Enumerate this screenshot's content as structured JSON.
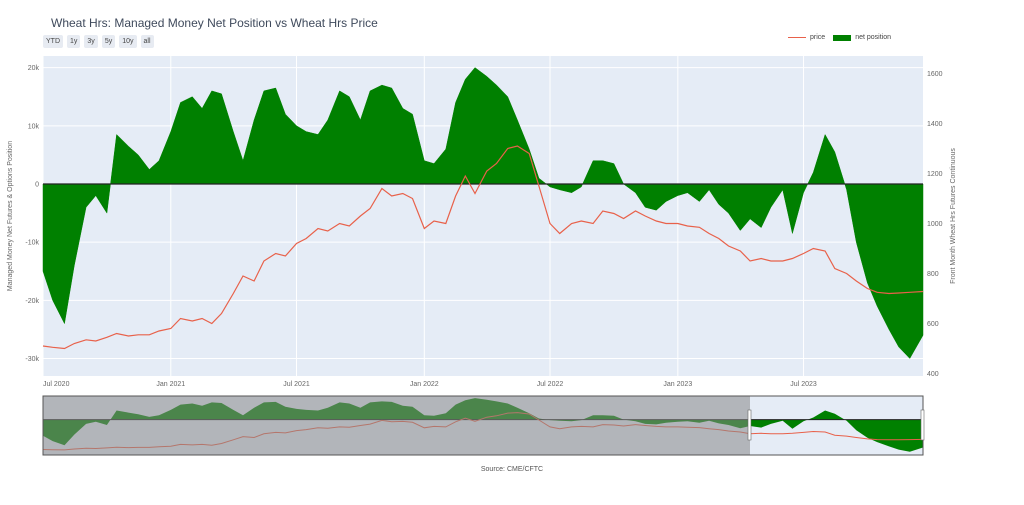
{
  "title": "Wheat Hrs: Managed Money Net Position vs Wheat Hrs Price",
  "range_buttons": [
    "YTD",
    "1y",
    "3y",
    "5y",
    "10y",
    "all"
  ],
  "legend": {
    "price": "price",
    "net_position": "net position"
  },
  "source": "Source: CME/CFTC",
  "colors": {
    "price": "#e8614a",
    "net_position": "#008000",
    "plot_bg": "#e5ecf6",
    "range_mask": "#888888"
  },
  "chart_data": {
    "type": "area",
    "title": "Wheat Hrs: Managed Money Net Position vs Wheat Hrs Price",
    "ylabel": "Managed Money Net Futures & Options Position",
    "y2label": "Front Month Wheat Hrs Futures Continuous",
    "xlim": [
      "2020-07-01",
      "2023-12-20"
    ],
    "ylim": [
      -33000,
      22000
    ],
    "y2lim": [
      390,
      1670
    ],
    "x_ticks": [
      "Jul 2020",
      "Jan 2021",
      "Jul 2021",
      "Jan 2022",
      "Jul 2022",
      "Jan 2023",
      "Jul 2023"
    ],
    "x_tick_dates": [
      "2020-07-01",
      "2021-01-01",
      "2021-07-01",
      "2022-01-01",
      "2022-07-01",
      "2023-01-01",
      "2023-07-01"
    ],
    "y_ticks": [
      20000,
      10000,
      0,
      -10000,
      -20000,
      -30000
    ],
    "y_tick_labels": [
      "20k",
      "10k",
      "0",
      "-10k",
      "-20k",
      "-30k"
    ],
    "y2_ticks": [
      1600,
      1400,
      1200,
      1000,
      800,
      600,
      400
    ],
    "y2_tick_labels": [
      "1600",
      "1400",
      "1200",
      "1000",
      "800",
      "600",
      "400"
    ],
    "legend_position": "top-right",
    "series": [
      {
        "name": "net position",
        "axis": "left",
        "style": "filled area to zero",
        "x": [
          "2020-07-01",
          "2020-07-15",
          "2020-08-01",
          "2020-08-15",
          "2020-09-01",
          "2020-09-15",
          "2020-10-01",
          "2020-10-15",
          "2020-11-01",
          "2020-11-15",
          "2020-12-01",
          "2020-12-15",
          "2021-01-01",
          "2021-01-15",
          "2021-02-01",
          "2021-02-15",
          "2021-03-01",
          "2021-03-15",
          "2021-04-01",
          "2021-04-15",
          "2021-05-01",
          "2021-05-15",
          "2021-06-01",
          "2021-06-15",
          "2021-07-01",
          "2021-07-15",
          "2021-08-01",
          "2021-08-15",
          "2021-09-01",
          "2021-09-15",
          "2021-10-01",
          "2021-10-15",
          "2021-11-01",
          "2021-11-15",
          "2021-12-01",
          "2021-12-15",
          "2022-01-01",
          "2022-01-15",
          "2022-02-01",
          "2022-02-15",
          "2022-03-01",
          "2022-03-15",
          "2022-04-01",
          "2022-04-15",
          "2022-05-01",
          "2022-05-15",
          "2022-06-01",
          "2022-06-15",
          "2022-07-01",
          "2022-07-15",
          "2022-08-01",
          "2022-08-15",
          "2022-09-01",
          "2022-09-15",
          "2022-10-01",
          "2022-10-15",
          "2022-11-01",
          "2022-11-15",
          "2022-12-01",
          "2022-12-15",
          "2023-01-01",
          "2023-01-15",
          "2023-02-01",
          "2023-02-15",
          "2023-03-01",
          "2023-03-15",
          "2023-04-01",
          "2023-04-15",
          "2023-05-01",
          "2023-05-15",
          "2023-06-01",
          "2023-06-15",
          "2023-07-01",
          "2023-07-15",
          "2023-08-01",
          "2023-08-15",
          "2023-09-01",
          "2023-09-15",
          "2023-10-01",
          "2023-10-15",
          "2023-11-01",
          "2023-11-15",
          "2023-12-01",
          "2023-12-20"
        ],
        "values": [
          -15000,
          -20000,
          -24000,
          -14000,
          -4000,
          -2000,
          -5000,
          8500,
          6500,
          5000,
          2500,
          4000,
          9000,
          14000,
          15000,
          13000,
          16000,
          15500,
          9000,
          4000,
          11000,
          16000,
          16500,
          12000,
          10000,
          9000,
          8500,
          11000,
          16000,
          15000,
          11000,
          16000,
          17000,
          16500,
          13000,
          12000,
          4000,
          3500,
          6000,
          14000,
          18000,
          20000,
          18500,
          17000,
          15000,
          11000,
          6000,
          1000,
          -500,
          -1000,
          -1500,
          -500,
          4000,
          4000,
          3500,
          0,
          -1500,
          -4000,
          -4500,
          -3000,
          -2000,
          -1500,
          -3000,
          -1000,
          -3500,
          -5000,
          -8000,
          -6000,
          -7500,
          -4000,
          -1000,
          -8500,
          -1500,
          2000,
          8500,
          5500,
          -1000,
          -10000,
          -17000,
          -21000,
          -25000,
          -28000,
          -30000,
          -26000
        ]
      },
      {
        "name": "price",
        "axis": "right",
        "style": "line",
        "x": [
          "2020-07-01",
          "2020-07-15",
          "2020-08-01",
          "2020-08-15",
          "2020-09-01",
          "2020-09-15",
          "2020-10-01",
          "2020-10-15",
          "2020-11-01",
          "2020-11-15",
          "2020-12-01",
          "2020-12-15",
          "2021-01-01",
          "2021-01-15",
          "2021-02-01",
          "2021-02-15",
          "2021-03-01",
          "2021-03-15",
          "2021-04-01",
          "2021-04-15",
          "2021-05-01",
          "2021-05-15",
          "2021-06-01",
          "2021-06-15",
          "2021-07-01",
          "2021-07-15",
          "2021-08-01",
          "2021-08-15",
          "2021-09-01",
          "2021-09-15",
          "2021-10-01",
          "2021-10-15",
          "2021-11-01",
          "2021-11-15",
          "2021-12-01",
          "2021-12-15",
          "2022-01-01",
          "2022-01-15",
          "2022-02-01",
          "2022-02-15",
          "2022-03-01",
          "2022-03-15",
          "2022-04-01",
          "2022-04-15",
          "2022-05-01",
          "2022-05-15",
          "2022-06-01",
          "2022-06-15",
          "2022-07-01",
          "2022-07-15",
          "2022-08-01",
          "2022-08-15",
          "2022-09-01",
          "2022-09-15",
          "2022-10-01",
          "2022-10-15",
          "2022-11-01",
          "2022-11-15",
          "2022-12-01",
          "2022-12-15",
          "2023-01-01",
          "2023-01-15",
          "2023-02-01",
          "2023-02-15",
          "2023-03-01",
          "2023-03-15",
          "2023-04-01",
          "2023-04-15",
          "2023-05-01",
          "2023-05-15",
          "2023-06-01",
          "2023-06-15",
          "2023-07-01",
          "2023-07-15",
          "2023-08-01",
          "2023-08-15",
          "2023-09-01",
          "2023-09-15",
          "2023-10-01",
          "2023-10-15",
          "2023-11-01",
          "2023-11-15",
          "2023-12-01",
          "2023-12-20"
        ],
        "values": [
          510,
          505,
          500,
          520,
          535,
          530,
          545,
          560,
          550,
          555,
          555,
          570,
          580,
          620,
          610,
          620,
          600,
          640,
          720,
          790,
          770,
          850,
          880,
          870,
          920,
          940,
          980,
          970,
          1000,
          990,
          1030,
          1060,
          1140,
          1110,
          1120,
          1100,
          980,
          1010,
          1000,
          1110,
          1190,
          1120,
          1210,
          1240,
          1300,
          1310,
          1280,
          1150,
          1000,
          960,
          1000,
          1010,
          1000,
          1050,
          1040,
          1020,
          1050,
          1030,
          1010,
          1000,
          1000,
          990,
          985,
          960,
          940,
          910,
          890,
          850,
          860,
          850,
          850,
          860,
          880,
          900,
          890,
          820,
          800,
          770,
          740,
          725,
          720,
          722,
          725,
          728
        ]
      }
    ]
  }
}
